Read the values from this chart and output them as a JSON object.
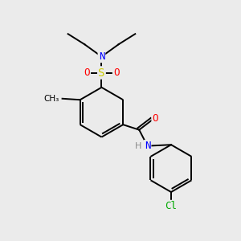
{
  "background_color": "#ebebeb",
  "bond_color": "#000000",
  "atom_colors": {
    "N": "#0000ff",
    "O": "#ff0000",
    "S": "#cccc00",
    "Cl": "#00aa00",
    "C": "#000000",
    "H": "#888888"
  },
  "figsize": [
    3.0,
    3.0
  ],
  "dpi": 100
}
